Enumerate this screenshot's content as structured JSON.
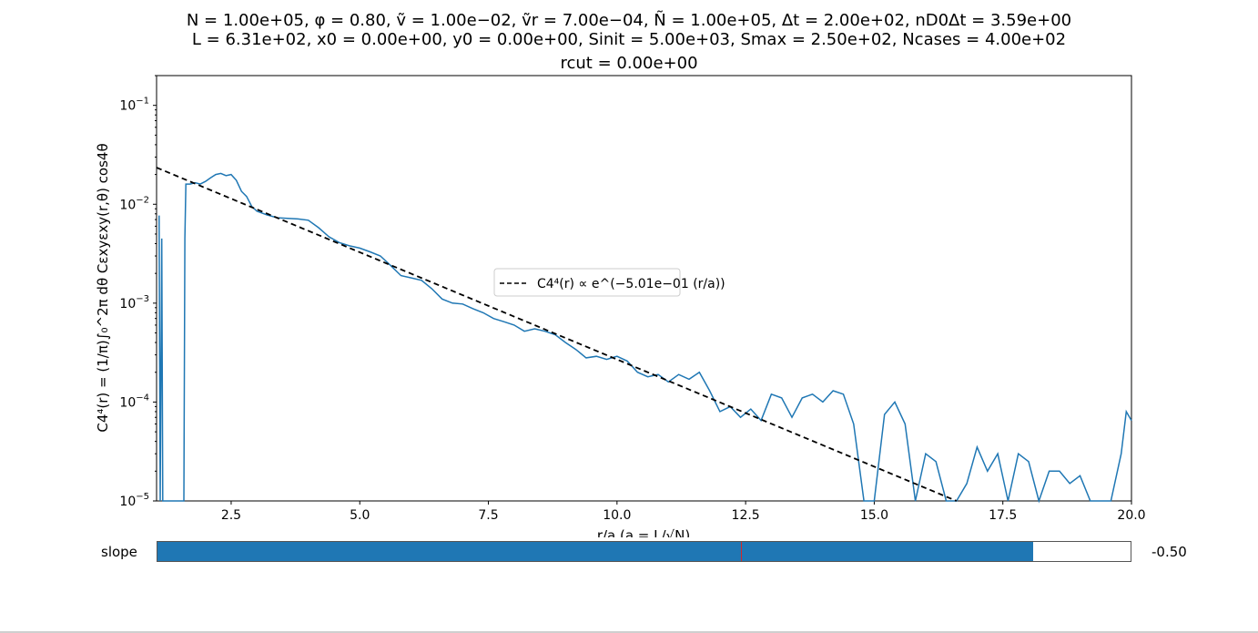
{
  "chart_data": {
    "type": "line",
    "title_lines": [
      "N = 1.00e+05, φ = 0.80, ṽ = 1.00e−02, ṽr = 7.00e−04, Ñ = 1.00e+05, Δt = 2.00e+02, nD0Δt = 3.59e+00",
      "L = 6.31e+02, x0 = 0.00e+00, y0 = 0.00e+00, Sinit = 5.00e+03, Smax = 2.50e+02, Ncases = 4.00e+02",
      "rcut = 0.00e+00"
    ],
    "xlabel": "r/a (a = L/√N)",
    "ylabel": "C4⁴(r) = (1/π)∫₀^2π dθ Cεxyεxy(r,θ) cos4θ",
    "xlim": [
      1.05,
      20.0
    ],
    "ylim": [
      1e-05,
      0.2
    ],
    "yscale": "log",
    "grid": false,
    "x_ticks": [
      "2.5",
      "5.0",
      "7.5",
      "10.0",
      "12.5",
      "15.0",
      "17.5",
      "20.0"
    ],
    "y_ticks": [
      {
        "mantissa": "10",
        "exp": "−1",
        "value": 0.1
      },
      {
        "mantissa": "10",
        "exp": "−2",
        "value": 0.01
      },
      {
        "mantissa": "10",
        "exp": "−3",
        "value": 0.001
      },
      {
        "mantissa": "10",
        "exp": "−4",
        "value": 0.0001
      },
      {
        "mantissa": "10",
        "exp": "−5",
        "value": 1e-05
      }
    ],
    "legend": {
      "placement": "center",
      "label": "C4⁴(r) ∝ e^(−5.01e−01 (r/a))"
    },
    "series": [
      {
        "style": "solid",
        "color": "#1f77b4",
        "points": [
          [
            1.1,
            0.0077
          ],
          [
            1.12,
            1e-05
          ],
          [
            1.15,
            0.0045
          ],
          [
            1.17,
            1e-05
          ],
          [
            1.58,
            1e-05
          ],
          [
            1.6,
            0.0045
          ],
          [
            1.62,
            0.016
          ],
          [
            1.7,
            0.016
          ],
          [
            1.8,
            0.0165
          ],
          [
            1.9,
            0.016
          ],
          [
            2.0,
            0.017
          ],
          [
            2.1,
            0.0185
          ],
          [
            2.2,
            0.02
          ],
          [
            2.3,
            0.0205
          ],
          [
            2.4,
            0.0195
          ],
          [
            2.5,
            0.02
          ],
          [
            2.6,
            0.0175
          ],
          [
            2.7,
            0.0135
          ],
          [
            2.8,
            0.012
          ],
          [
            2.9,
            0.0095
          ],
          [
            3.0,
            0.0085
          ],
          [
            3.2,
            0.0078
          ],
          [
            3.4,
            0.0073
          ],
          [
            3.6,
            0.0072
          ],
          [
            3.8,
            0.0071
          ],
          [
            4.0,
            0.0069
          ],
          [
            4.2,
            0.0058
          ],
          [
            4.4,
            0.0047
          ],
          [
            4.6,
            0.0041
          ],
          [
            4.8,
            0.0038
          ],
          [
            5.0,
            0.0036
          ],
          [
            5.2,
            0.0033
          ],
          [
            5.4,
            0.003
          ],
          [
            5.6,
            0.0024
          ],
          [
            5.8,
            0.0019
          ],
          [
            6.0,
            0.0018
          ],
          [
            6.2,
            0.0017
          ],
          [
            6.4,
            0.0014
          ],
          [
            6.6,
            0.0011
          ],
          [
            6.8,
            0.001
          ],
          [
            7.0,
            0.00098
          ],
          [
            7.2,
            0.00088
          ],
          [
            7.4,
            0.0008
          ],
          [
            7.6,
            0.0007
          ],
          [
            7.8,
            0.00065
          ],
          [
            8.0,
            0.0006
          ],
          [
            8.2,
            0.00052
          ],
          [
            8.4,
            0.00055
          ],
          [
            8.6,
            0.00052
          ],
          [
            8.8,
            0.00048
          ],
          [
            9.0,
            0.0004
          ],
          [
            9.2,
            0.00034
          ],
          [
            9.4,
            0.00028
          ],
          [
            9.6,
            0.00029
          ],
          [
            9.8,
            0.00027
          ],
          [
            10.0,
            0.00029
          ],
          [
            10.2,
            0.00026
          ],
          [
            10.4,
            0.0002
          ],
          [
            10.6,
            0.00018
          ],
          [
            10.8,
            0.00019
          ],
          [
            11.0,
            0.00016
          ],
          [
            11.2,
            0.00019
          ],
          [
            11.4,
            0.00017
          ],
          [
            11.6,
            0.0002
          ],
          [
            11.8,
            0.00013
          ],
          [
            12.0,
            8e-05
          ],
          [
            12.2,
            9e-05
          ],
          [
            12.4,
            7e-05
          ],
          [
            12.6,
            8.5e-05
          ],
          [
            12.8,
            6.5e-05
          ],
          [
            13.0,
            0.00012
          ],
          [
            13.2,
            0.00011
          ],
          [
            13.4,
            7e-05
          ],
          [
            13.6,
            0.00011
          ],
          [
            13.8,
            0.00012
          ],
          [
            14.0,
            0.0001
          ],
          [
            14.2,
            0.00013
          ],
          [
            14.4,
            0.00012
          ],
          [
            14.6,
            6e-05
          ],
          [
            14.8,
            1e-05
          ],
          [
            15.0,
            1e-05
          ],
          [
            15.2,
            7.5e-05
          ],
          [
            15.4,
            0.0001
          ],
          [
            15.6,
            6e-05
          ],
          [
            15.8,
            1e-05
          ],
          [
            16.0,
            3e-05
          ],
          [
            16.2,
            2.5e-05
          ],
          [
            16.4,
            1e-05
          ],
          [
            16.6,
            1e-05
          ],
          [
            16.8,
            1.5e-05
          ],
          [
            17.0,
            3.5e-05
          ],
          [
            17.2,
            2e-05
          ],
          [
            17.4,
            3e-05
          ],
          [
            17.6,
            1e-05
          ],
          [
            17.8,
            3e-05
          ],
          [
            18.0,
            2.5e-05
          ],
          [
            18.2,
            1e-05
          ],
          [
            18.4,
            2e-05
          ],
          [
            18.6,
            2e-05
          ],
          [
            18.8,
            1.5e-05
          ],
          [
            19.0,
            1.8e-05
          ],
          [
            19.2,
            1e-05
          ],
          [
            19.4,
            1e-05
          ],
          [
            19.6,
            1e-05
          ],
          [
            19.8,
            3e-05
          ],
          [
            19.9,
            8e-05
          ],
          [
            20.0,
            6.5e-05
          ]
        ]
      },
      {
        "style": "dashed",
        "color": "#000000",
        "fit_exponent": -0.501,
        "points": [
          [
            1.05,
            0.0235
          ],
          [
            16.6,
            1e-05
          ]
        ]
      }
    ]
  },
  "slider": {
    "label": "slope",
    "value_text": "-0.50",
    "fill_fraction": 0.9,
    "initial_marker_fraction": 0.6,
    "fill_color": "#1f77b4",
    "marker_color": "#d62728"
  }
}
